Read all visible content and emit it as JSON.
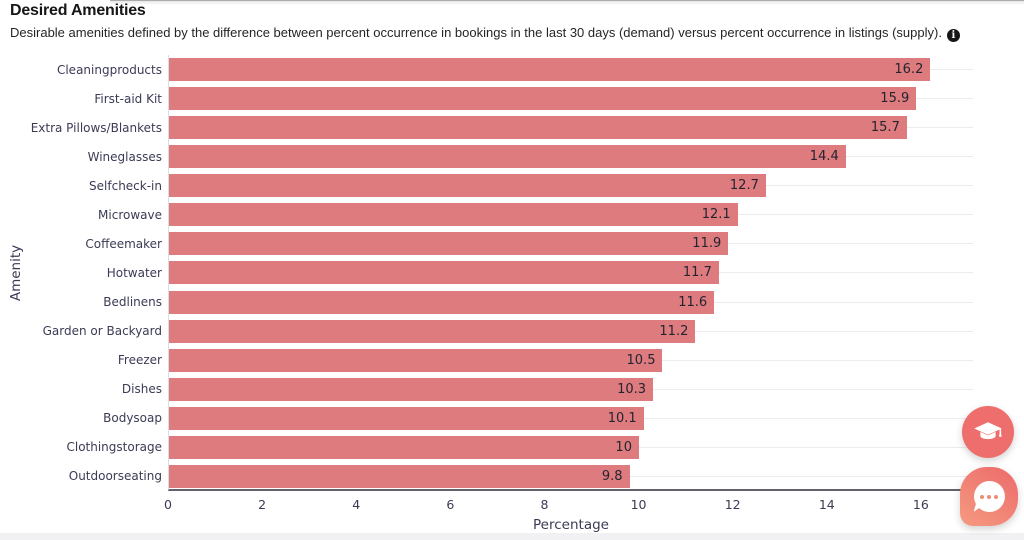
{
  "header": {
    "title": "Desired Amenities",
    "subtitle": "Desirable amenities defined by the difference between percent occurrence in bookings in the last 30 days (demand) versus percent occurrence in listings (supply).",
    "info_icon_glyph": "i"
  },
  "chart_data": {
    "type": "bar",
    "orientation": "horizontal",
    "title": "",
    "xlabel": "Percentage",
    "ylabel": "Amenity",
    "xlim": [
      0,
      17.15
    ],
    "xticks": [
      0,
      2,
      4,
      6,
      8,
      10,
      12,
      14,
      16
    ],
    "grid": "horizontal category gridlines, light gray, visible beyond bar ends",
    "legend": "none",
    "bar_color": "#dd7b7f",
    "value_label_position": "inside-end",
    "categories": [
      "Cleaningproducts",
      "First-aid Kit",
      "Extra Pillows/Blankets",
      "Wineglasses",
      "Selfcheck-in",
      "Microwave",
      "Coffeemaker",
      "Hotwater",
      "Bedlinens",
      "Garden or Backyard",
      "Freezer",
      "Dishes",
      "Bodysoap",
      "Clothingstorage",
      "Outdoorseating"
    ],
    "values": [
      16.2,
      15.9,
      15.7,
      14.4,
      12.7,
      12.1,
      11.9,
      11.7,
      11.6,
      11.2,
      10.5,
      10.3,
      10.1,
      10,
      9.8
    ],
    "value_labels": [
      "16.2",
      "15.9",
      "15.7",
      "14.4",
      "12.7",
      "12.1",
      "11.9",
      "11.7",
      "11.6",
      "11.2",
      "10.5",
      "10.3",
      "10.1",
      "10",
      "9.8"
    ]
  },
  "floating_buttons": {
    "education": {
      "icon": "graduation-cap-icon",
      "color": "#ed6e6d"
    },
    "chat": {
      "icon": "chat-bubble-icon",
      "color": "#f08a74",
      "dots": 3
    }
  },
  "colors": {
    "bar": "#dd7b7f",
    "axis_text": "#3b3b55",
    "axis_line": "#63636f",
    "gridline": "#ececf0",
    "value_text": "#24242f",
    "bottom_strip": "#f1f1f4"
  }
}
